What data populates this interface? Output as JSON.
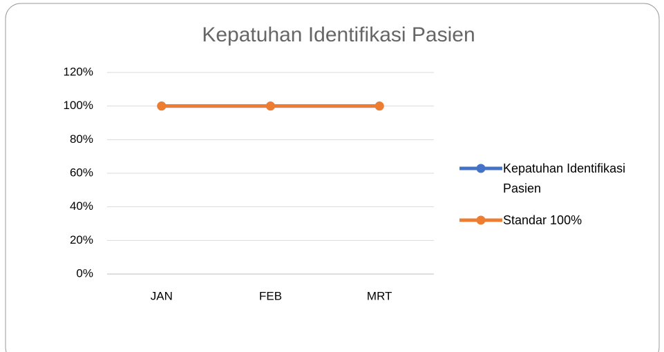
{
  "chart_data": {
    "type": "line",
    "title": "Kepatuhan Identifikasi Pasien",
    "categories": [
      "JAN",
      "FEB",
      "MRT"
    ],
    "series": [
      {
        "name": "Kepatuhan Identifikasi Pasien",
        "color": "#4472c4",
        "values": [
          100,
          100,
          100
        ]
      },
      {
        "name": "Standar 100%",
        "color": "#ed7d31",
        "values": [
          100,
          100,
          100
        ]
      }
    ],
    "ylim": [
      0,
      120
    ],
    "yticks": [
      {
        "value": 0,
        "label": "0%"
      },
      {
        "value": 20,
        "label": "20%"
      },
      {
        "value": 40,
        "label": "40%"
      },
      {
        "value": 60,
        "label": "60%"
      },
      {
        "value": 80,
        "label": "80%"
      },
      {
        "value": 100,
        "label": "100%"
      },
      {
        "value": 120,
        "label": "120%"
      }
    ],
    "grid": true,
    "legend": "right"
  }
}
